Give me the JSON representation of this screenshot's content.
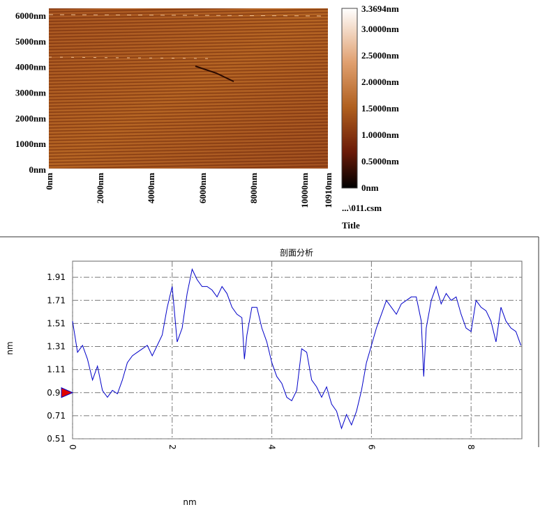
{
  "image": {
    "y_labels": [
      "6000nm",
      "5000nm",
      "4000nm",
      "3000nm",
      "2000nm",
      "1000nm",
      "0nm"
    ],
    "x_labels": [
      "0nm",
      "2000nm",
      "4000nm",
      "6000nm",
      "8000nm",
      "10000nm",
      "10910nm"
    ],
    "colorbar_labels": [
      "3.3694nm",
      "3.0000nm",
      "2.5000nm",
      "2.0000nm",
      "1.5000nm",
      "1.0000nm",
      "0.5000nm",
      "0nm"
    ],
    "file": "...\\011.csm",
    "title": "Title"
  },
  "chart_data": {
    "type": "line",
    "title": "剖面分析",
    "x_label": "nm",
    "y_label": "nm",
    "x": [
      0,
      0.1,
      0.2,
      0.3,
      0.4,
      0.5,
      0.6,
      0.7,
      0.8,
      0.9,
      1.0,
      1.1,
      1.2,
      1.3,
      1.4,
      1.5,
      1.6,
      1.7,
      1.8,
      1.9,
      2.0,
      2.1,
      2.2,
      2.3,
      2.4,
      2.5,
      2.6,
      2.7,
      2.8,
      2.9,
      3.0,
      3.1,
      3.2,
      3.3,
      3.4,
      3.45,
      3.5,
      3.6,
      3.7,
      3.8,
      3.9,
      4.0,
      4.1,
      4.2,
      4.3,
      4.4,
      4.5,
      4.6,
      4.7,
      4.8,
      4.9,
      5.0,
      5.1,
      5.2,
      5.3,
      5.4,
      5.5,
      5.6,
      5.7,
      5.8,
      5.9,
      6.0,
      6.1,
      6.2,
      6.3,
      6.4,
      6.5,
      6.6,
      6.7,
      6.8,
      6.9,
      7.0,
      7.05,
      7.1,
      7.2,
      7.3,
      7.4,
      7.5,
      7.6,
      7.7,
      7.8,
      7.9,
      8.0,
      8.1,
      8.2,
      8.3,
      8.4,
      8.5,
      8.6,
      8.7,
      8.8,
      8.9,
      9.0
    ],
    "series": [
      {
        "color": "#0000c8",
        "values": [
          1.53,
          1.26,
          1.32,
          1.2,
          1.02,
          1.14,
          0.93,
          0.87,
          0.93,
          0.9,
          1.02,
          1.17,
          1.23,
          1.26,
          1.29,
          1.32,
          1.23,
          1.32,
          1.41,
          1.65,
          1.83,
          1.35,
          1.47,
          1.77,
          1.98,
          1.89,
          1.83,
          1.83,
          1.8,
          1.74,
          1.83,
          1.77,
          1.65,
          1.59,
          1.56,
          1.2,
          1.41,
          1.65,
          1.65,
          1.47,
          1.35,
          1.17,
          1.05,
          0.99,
          0.87,
          0.84,
          0.93,
          1.29,
          1.26,
          1.02,
          0.96,
          0.87,
          0.96,
          0.81,
          0.75,
          0.6,
          0.72,
          0.63,
          0.75,
          0.93,
          1.17,
          1.32,
          1.47,
          1.59,
          1.71,
          1.65,
          1.59,
          1.68,
          1.71,
          1.74,
          1.74,
          1.53,
          1.05,
          1.47,
          1.71,
          1.83,
          1.68,
          1.77,
          1.71,
          1.74,
          1.59,
          1.47,
          1.44,
          1.71,
          1.65,
          1.62,
          1.53,
          1.35,
          1.65,
          1.53,
          1.47,
          1.44,
          1.32
        ]
      }
    ],
    "xlim": [
      0,
      9.02
    ],
    "ylim": [
      0.51,
      2.05
    ],
    "xticks": [
      0,
      2,
      4,
      6,
      8
    ],
    "yticks": [
      0.51,
      0.71,
      0.91,
      1.11,
      1.31,
      1.51,
      1.71,
      1.91
    ],
    "cursor": 0.91,
    "cursor_color": "#e00000",
    "grid": true
  }
}
